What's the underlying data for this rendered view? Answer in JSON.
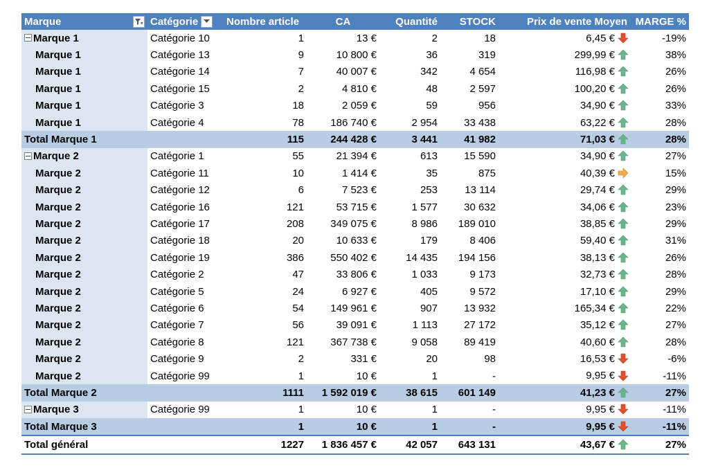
{
  "headers": {
    "marque": "Marque",
    "categorie": "Catégorie",
    "nb_article": "Nombre article",
    "ca": "CA",
    "quantite": "Quantité",
    "stock": "STOCK",
    "prix": "Prix de vente Moyen",
    "marge": "MARGE %"
  },
  "icons": {
    "filter": "filter-icon",
    "dropdown": "chevron-down-icon",
    "collapse": "minus-collapse-icon",
    "up": "green-up-arrow-icon",
    "down": "red-down-arrow-icon",
    "right": "orange-right-arrow-icon"
  },
  "colors": {
    "header": "#4f81bd",
    "row_label": "#dce6f1",
    "subtotal": "#b8cce4",
    "up": "#6cb48b",
    "down": "#e0502b",
    "right": "#f2ab4a"
  },
  "rows": [
    {
      "type": "data",
      "first": true,
      "marque": "Marque 1",
      "cat": "Catégorie 10",
      "nb": "1",
      "ca": "13 €",
      "qte": "2",
      "stock": "18",
      "prix": "6,45 €",
      "trend": "down",
      "marge": "-19%"
    },
    {
      "type": "data",
      "marque": "Marque 1",
      "cat": "Catégorie 13",
      "nb": "9",
      "ca": "10 800 €",
      "qte": "36",
      "stock": "319",
      "prix": "299,99 €",
      "trend": "up",
      "marge": "38%"
    },
    {
      "type": "data",
      "marque": "Marque 1",
      "cat": "Catégorie 14",
      "nb": "7",
      "ca": "40 007 €",
      "qte": "342",
      "stock": "4 654",
      "prix": "116,98 €",
      "trend": "up",
      "marge": "26%"
    },
    {
      "type": "data",
      "marque": "Marque 1",
      "cat": "Catégorie 15",
      "nb": "2",
      "ca": "4 810 €",
      "qte": "48",
      "stock": "2 597",
      "prix": "100,20 €",
      "trend": "up",
      "marge": "26%"
    },
    {
      "type": "data",
      "marque": "Marque 1",
      "cat": "Catégorie 3",
      "nb": "18",
      "ca": "2 059 €",
      "qte": "59",
      "stock": "956",
      "prix": "34,90 €",
      "trend": "up",
      "marge": "33%"
    },
    {
      "type": "data",
      "marque": "Marque 1",
      "cat": "Catégorie 4",
      "nb": "78",
      "ca": "186 740 €",
      "qte": "2 954",
      "stock": "33 438",
      "prix": "63,22 €",
      "trend": "up",
      "marge": "28%"
    },
    {
      "type": "total",
      "marque": "Total Marque 1",
      "cat": "",
      "nb": "115",
      "ca": "244 428 €",
      "qte": "3 441",
      "stock": "41 982",
      "prix": "71,03 €",
      "trend": "up",
      "marge": "28%"
    },
    {
      "type": "data",
      "first": true,
      "marque": "Marque 2",
      "cat": "Catégorie 1",
      "nb": "55",
      "ca": "21 394 €",
      "qte": "613",
      "stock": "15 590",
      "prix": "34,90 €",
      "trend": "up",
      "marge": "27%"
    },
    {
      "type": "data",
      "marque": "Marque 2",
      "cat": "Catégorie 11",
      "nb": "10",
      "ca": "1 414 €",
      "qte": "35",
      "stock": "875",
      "prix": "40,39 €",
      "trend": "right",
      "marge": "15%"
    },
    {
      "type": "data",
      "marque": "Marque 2",
      "cat": "Catégorie 12",
      "nb": "6",
      "ca": "7 523 €",
      "qte": "253",
      "stock": "13 114",
      "prix": "29,74 €",
      "trend": "up",
      "marge": "29%"
    },
    {
      "type": "data",
      "marque": "Marque 2",
      "cat": "Catégorie 16",
      "nb": "121",
      "ca": "53 715 €",
      "qte": "1 577",
      "stock": "30 632",
      "prix": "34,06 €",
      "trend": "up",
      "marge": "23%"
    },
    {
      "type": "data",
      "marque": "Marque 2",
      "cat": "Catégorie 17",
      "nb": "208",
      "ca": "349 075 €",
      "qte": "8 986",
      "stock": "189 010",
      "prix": "38,85 €",
      "trend": "up",
      "marge": "29%"
    },
    {
      "type": "data",
      "marque": "Marque 2",
      "cat": "Catégorie 18",
      "nb": "20",
      "ca": "10 633 €",
      "qte": "179",
      "stock": "8 406",
      "prix": "59,40 €",
      "trend": "up",
      "marge": "31%"
    },
    {
      "type": "data",
      "marque": "Marque 2",
      "cat": "Catégorie 19",
      "nb": "386",
      "ca": "550 402 €",
      "qte": "14 435",
      "stock": "194 156",
      "prix": "38,13 €",
      "trend": "up",
      "marge": "26%"
    },
    {
      "type": "data",
      "marque": "Marque 2",
      "cat": "Catégorie 2",
      "nb": "47",
      "ca": "33 806 €",
      "qte": "1 033",
      "stock": "9 173",
      "prix": "32,73 €",
      "trend": "up",
      "marge": "28%"
    },
    {
      "type": "data",
      "marque": "Marque 2",
      "cat": "Catégorie 5",
      "nb": "24",
      "ca": "6 927 €",
      "qte": "405",
      "stock": "9 572",
      "prix": "17,10 €",
      "trend": "up",
      "marge": "29%"
    },
    {
      "type": "data",
      "marque": "Marque 2",
      "cat": "Catégorie 6",
      "nb": "54",
      "ca": "149 961 €",
      "qte": "907",
      "stock": "13 932",
      "prix": "165,34 €",
      "trend": "up",
      "marge": "22%"
    },
    {
      "type": "data",
      "marque": "Marque 2",
      "cat": "Catégorie 7",
      "nb": "56",
      "ca": "39 091 €",
      "qte": "1 113",
      "stock": "27 172",
      "prix": "35,12 €",
      "trend": "up",
      "marge": "27%"
    },
    {
      "type": "data",
      "marque": "Marque 2",
      "cat": "Catégorie 8",
      "nb": "121",
      "ca": "367 738 €",
      "qte": "9 058",
      "stock": "89 419",
      "prix": "40,60 €",
      "trend": "up",
      "marge": "28%"
    },
    {
      "type": "data",
      "marque": "Marque 2",
      "cat": "Catégorie 9",
      "nb": "2",
      "ca": "331 €",
      "qte": "20",
      "stock": "98",
      "prix": "16,53 €",
      "trend": "down",
      "marge": "-6%"
    },
    {
      "type": "data",
      "marque": "Marque 2",
      "cat": "Catégorie 99",
      "nb": "1",
      "ca": "10 €",
      "qte": "1",
      "stock": "-",
      "prix": "9,95 €",
      "trend": "down",
      "marge": "-11%"
    },
    {
      "type": "total",
      "marque": "Total Marque 2",
      "cat": "",
      "nb": "1111",
      "ca": "1 592 019 €",
      "qte": "38 615",
      "stock": "601 149",
      "prix": "41,23 €",
      "trend": "up",
      "marge": "27%"
    },
    {
      "type": "data",
      "first": true,
      "marque": "Marque 3",
      "cat": "Catégorie 99",
      "nb": "1",
      "ca": "10 €",
      "qte": "1",
      "stock": "-",
      "prix": "9,95 €",
      "trend": "down",
      "marge": "-11%"
    },
    {
      "type": "total",
      "marque": "Total Marque 3",
      "cat": "",
      "nb": "1",
      "ca": "10 €",
      "qte": "1",
      "stock": "-",
      "prix": "9,95 €",
      "trend": "down",
      "marge": "-11%"
    },
    {
      "type": "grand",
      "marque": "Total général",
      "cat": "",
      "nb": "1227",
      "ca": "1 836 457 €",
      "qte": "42 057",
      "stock": "643 131",
      "prix": "43,67 €",
      "trend": "up",
      "marge": "27%"
    }
  ]
}
